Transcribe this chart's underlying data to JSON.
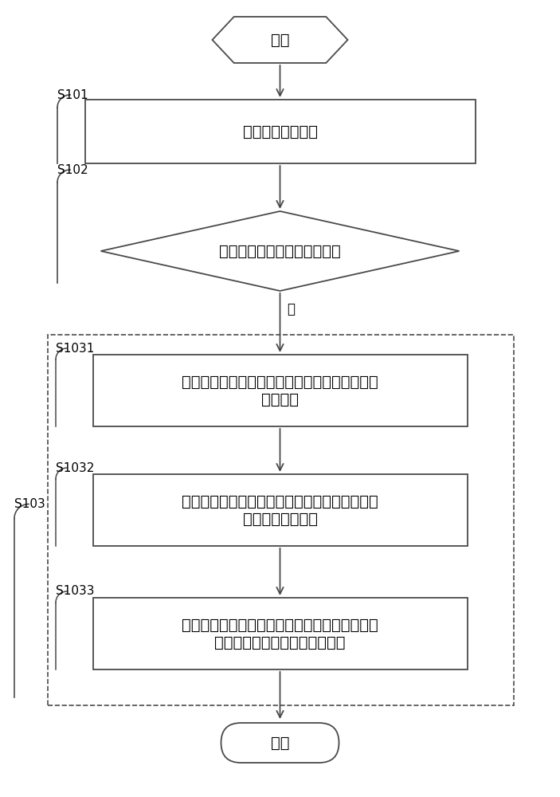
{
  "bg_color": "#ffffff",
  "line_color": "#4a4a4a",
  "text_color": "#000000",
  "font_size_main": 14,
  "font_size_label": 11,
  "font_size_yes": 12,
  "title_start": "开始",
  "title_end": "结束",
  "s101_label": "S101",
  "s102_label": "S102",
  "s103_label": "S103",
  "s1031_label": "S1031",
  "s1032_label": "S1032",
  "s1033_label": "S1033",
  "box1_text": "实时采集电网电压",
  "diamond_text": "当前电网电压处于低电压状态",
  "yes_label": "是",
  "box2_line1": "输出用于表征电网电压低电压状态的低电压信号",
  "box2_line2": "至控制器",
  "box3_line1": "所述控制器在获取到所述低电压信号后，向告警",
  "box3_line2": "装置输出触发信号",
  "box4_line1": "所述告警装置在获取到触发信号后输出用于表征",
  "box4_line2": "电网电压低电压状态的警示信息"
}
